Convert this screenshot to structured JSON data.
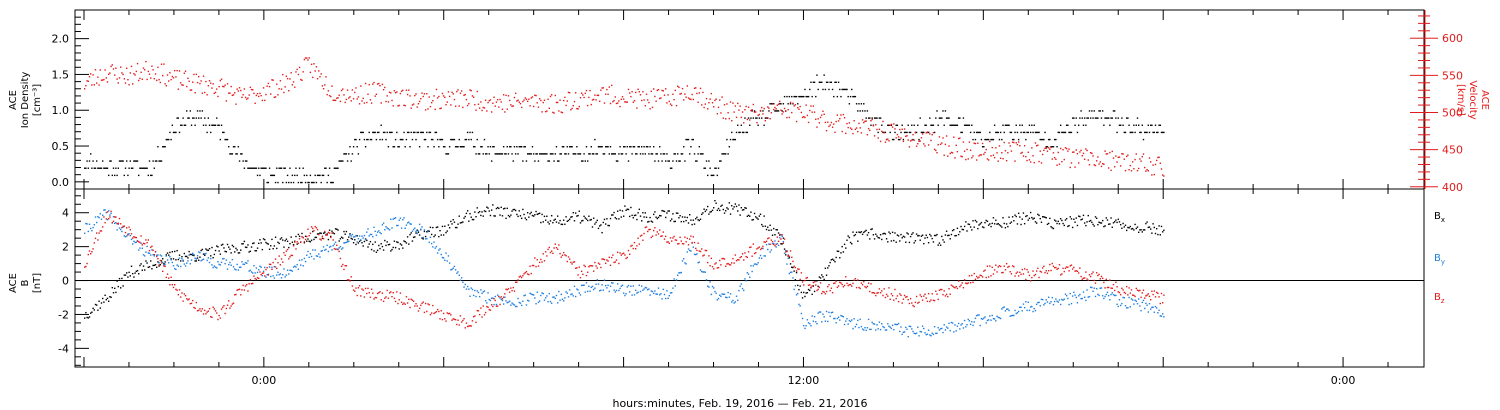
{
  "colors": {
    "black": "#000000",
    "red": "#e21b1b",
    "blue": "#1f7fe0",
    "background": "#ffffff"
  },
  "xaxis": {
    "label": "hours:minutes, Feb. 19, 2016 — Feb. 21, 2016",
    "ticks": [
      {
        "label": "0:00",
        "hours": 0
      },
      {
        "label": "12:00",
        "hours": 12
      },
      {
        "label": "0:00",
        "hours": 24
      }
    ],
    "xlim_hours": [
      -4.2,
      25.8
    ]
  },
  "chart_data": [
    {
      "type": "scatter",
      "panel": "top",
      "ylabel_left": [
        "ACE",
        "Ion Density",
        "[cm⁻³]"
      ],
      "ylabel_right": [
        "ACE",
        "Velocity",
        "[km/s]"
      ],
      "yticks_left": [
        "0.0",
        "0.5",
        "1.0",
        "1.5",
        "2.0"
      ],
      "ylim_left": [
        -0.1,
        2.4
      ],
      "yticks_right": [
        "400",
        "450",
        "500",
        "550",
        "600"
      ],
      "ylim_right": [
        397,
        638
      ],
      "series": [
        {
          "axis": "left",
          "color": "black",
          "x_hours": [
            -4.0,
            -3.5,
            -3.0,
            -2.5,
            -2.0,
            -1.5,
            -1.0,
            -0.5,
            0.0,
            0.5,
            1.0,
            1.5,
            2.0,
            2.5,
            3.0,
            3.5,
            4.0,
            4.5,
            5.0,
            5.5,
            6.0,
            6.5,
            7.0,
            7.5,
            8.0,
            8.5,
            9.0,
            9.5,
            10.0,
            10.5,
            11.0,
            11.5,
            12.0,
            12.5,
            13.0,
            13.5,
            14.0,
            14.5,
            15.0,
            15.5,
            16.0,
            16.5,
            17.0,
            17.5,
            18.0,
            18.5,
            19.0,
            19.5,
            20.0
          ],
          "values": [
            0.3,
            0.2,
            0.25,
            0.2,
            0.8,
            0.9,
            0.75,
            0.3,
            0.1,
            0.1,
            0.1,
            0.1,
            0.5,
            0.7,
            0.55,
            0.65,
            0.5,
            0.6,
            0.4,
            0.45,
            0.35,
            0.4,
            0.4,
            0.5,
            0.4,
            0.45,
            0.3,
            0.5,
            0.1,
            0.7,
            0.9,
            1.05,
            1.25,
            1.4,
            1.2,
            0.9,
            0.65,
            0.7,
            0.9,
            0.8,
            0.6,
            0.75,
            0.7,
            0.6,
            0.8,
            0.95,
            0.85,
            0.75,
            0.7
          ]
        },
        {
          "axis": "right",
          "color": "red",
          "x_hours": [
            -4.0,
            -3.5,
            -3.0,
            -2.5,
            -2.0,
            -1.5,
            -1.0,
            -0.5,
            0.0,
            0.5,
            1.0,
            1.5,
            2.0,
            2.5,
            3.0,
            3.5,
            4.0,
            4.5,
            5.0,
            5.5,
            6.0,
            6.5,
            7.0,
            7.5,
            8.0,
            8.5,
            9.0,
            9.5,
            10.0,
            10.5,
            11.0,
            11.5,
            12.0,
            12.5,
            13.0,
            13.5,
            14.0,
            14.5,
            15.0,
            15.5,
            16.0,
            16.5,
            17.0,
            17.5,
            18.0,
            18.5,
            19.0,
            19.5,
            20.0
          ],
          "values": [
            540,
            555,
            550,
            560,
            545,
            540,
            535,
            520,
            530,
            540,
            565,
            530,
            525,
            528,
            522,
            518,
            518,
            520,
            515,
            514,
            516,
            512,
            520,
            525,
            522,
            518,
            520,
            532,
            512,
            500,
            498,
            505,
            500,
            490,
            485,
            478,
            472,
            466,
            458,
            452,
            448,
            450,
            448,
            445,
            440,
            438,
            434,
            432,
            428
          ]
        }
      ]
    },
    {
      "type": "scatter",
      "panel": "bottom",
      "ylabel_left": [
        "ACE",
        "B",
        "[nT]"
      ],
      "yticks_left": [
        "-4",
        "-2",
        "0",
        "2",
        "4"
      ],
      "ylim_left": [
        -5.1,
        5.4
      ],
      "legend": [
        {
          "base": "B",
          "sub": "x",
          "color": "black"
        },
        {
          "base": "B",
          "sub": "y",
          "color": "blue"
        },
        {
          "base": "B",
          "sub": "z",
          "color": "red"
        }
      ],
      "series": [
        {
          "name": "Bx",
          "color": "black",
          "x_hours": [
            -4.0,
            -3.5,
            -3.0,
            -2.5,
            -2.0,
            -1.5,
            -1.0,
            -0.5,
            0.0,
            0.5,
            1.0,
            1.5,
            2.0,
            2.5,
            3.0,
            3.5,
            4.0,
            4.5,
            5.0,
            5.5,
            6.0,
            6.5,
            7.0,
            7.5,
            8.0,
            8.5,
            9.0,
            9.5,
            10.0,
            10.5,
            11.0,
            11.5,
            12.0,
            12.5,
            13.0,
            13.5,
            14.0,
            14.5,
            15.0,
            15.5,
            16.0,
            16.5,
            17.0,
            17.5,
            18.0,
            18.5,
            19.0,
            19.5,
            20.0
          ],
          "values": [
            -2.0,
            -1.0,
            0.5,
            1.0,
            1.5,
            1.5,
            1.8,
            2.0,
            2.2,
            2.3,
            2.6,
            2.8,
            2.5,
            2.0,
            2.2,
            2.8,
            3.0,
            3.8,
            4.2,
            4.0,
            3.8,
            3.5,
            3.8,
            3.2,
            4.2,
            3.8,
            3.9,
            3.6,
            4.5,
            4.2,
            3.8,
            2.5,
            -1.0,
            0.5,
            2.5,
            2.8,
            2.6,
            2.5,
            2.4,
            3.2,
            3.4,
            3.5,
            3.8,
            3.4,
            3.5,
            3.6,
            3.3,
            3.2,
            3.0
          ]
        },
        {
          "name": "By",
          "color": "blue",
          "x_hours": [
            -4.0,
            -3.5,
            -3.0,
            -2.5,
            -2.0,
            -1.5,
            -1.0,
            -0.5,
            0.0,
            0.5,
            1.0,
            1.5,
            2.0,
            2.5,
            3.0,
            3.5,
            4.0,
            4.5,
            5.0,
            5.5,
            6.0,
            6.5,
            7.0,
            7.5,
            8.0,
            8.5,
            9.0,
            9.5,
            10.0,
            10.5,
            11.0,
            11.5,
            12.0,
            12.5,
            13.0,
            13.5,
            14.0,
            14.5,
            15.0,
            15.5,
            16.0,
            16.5,
            17.0,
            17.5,
            18.0,
            18.5,
            19.0,
            19.5,
            20.0
          ],
          "values": [
            3.0,
            4.0,
            2.5,
            1.5,
            1.0,
            1.5,
            1.0,
            1.0,
            0.5,
            0.5,
            1.5,
            2.0,
            2.5,
            3.0,
            3.5,
            3.0,
            1.5,
            -0.5,
            -1.0,
            -1.2,
            -1.0,
            -1.0,
            -0.5,
            -0.2,
            -0.5,
            -0.6,
            -0.8,
            2.0,
            -0.8,
            -1.0,
            1.5,
            2.5,
            -2.5,
            -2.0,
            -2.5,
            -2.6,
            -2.8,
            -3.0,
            -3.0,
            -2.6,
            -2.2,
            -1.8,
            -1.5,
            -1.2,
            -1.0,
            -0.6,
            -1.2,
            -1.4,
            -1.8
          ]
        },
        {
          "name": "Bz",
          "color": "red",
          "x_hours": [
            -4.0,
            -3.5,
            -3.0,
            -2.5,
            -2.0,
            -1.5,
            -1.0,
            -0.5,
            0.0,
            0.5,
            1.0,
            1.5,
            2.0,
            2.5,
            3.0,
            3.5,
            4.0,
            4.5,
            5.0,
            5.5,
            6.0,
            6.5,
            7.0,
            7.5,
            8.0,
            8.5,
            9.0,
            9.5,
            10.0,
            10.5,
            11.0,
            11.5,
            12.0,
            12.5,
            13.0,
            13.5,
            14.0,
            14.5,
            15.0,
            15.5,
            16.0,
            16.5,
            17.0,
            17.5,
            18.0,
            18.5,
            19.0,
            19.5,
            20.0
          ],
          "values": [
            1.0,
            4.0,
            3.0,
            2.0,
            -0.5,
            -1.5,
            -2.0,
            -0.5,
            0.5,
            1.5,
            3.0,
            2.5,
            -0.5,
            -0.8,
            -1.0,
            -1.5,
            -2.0,
            -2.5,
            -1.5,
            -0.5,
            1.0,
            2.0,
            0.5,
            1.0,
            1.5,
            3.0,
            2.5,
            2.4,
            1.0,
            1.4,
            2.0,
            2.5,
            0.0,
            -0.5,
            0.0,
            -0.5,
            -0.8,
            -1.2,
            -0.8,
            -0.2,
            0.5,
            0.8,
            0.3,
            0.8,
            0.6,
            0.2,
            -0.5,
            -0.8,
            -1.0
          ]
        }
      ]
    }
  ]
}
